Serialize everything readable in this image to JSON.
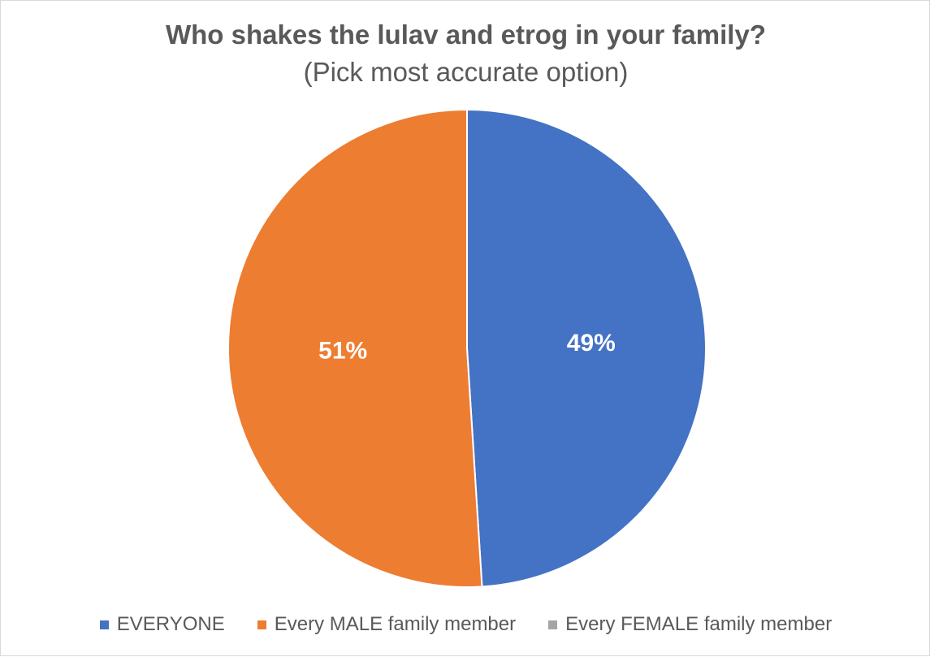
{
  "chart_data": {
    "type": "pie",
    "title": "Who shakes the lulav and etrog in your family?",
    "subtitle": "(Pick most accurate option)",
    "slices": [
      {
        "name": "EVERYONE",
        "value": 49,
        "label": "49%",
        "color": "#4472C4"
      },
      {
        "name": "Every MALE family member",
        "value": 51,
        "label": "51%",
        "color": "#ED7D31"
      },
      {
        "name": "Every FEMALE family member",
        "value": 0,
        "label": "",
        "color": "#A5A5A5"
      }
    ],
    "legend_position": "bottom",
    "start_angle_deg": 0,
    "direction": "clockwise"
  }
}
